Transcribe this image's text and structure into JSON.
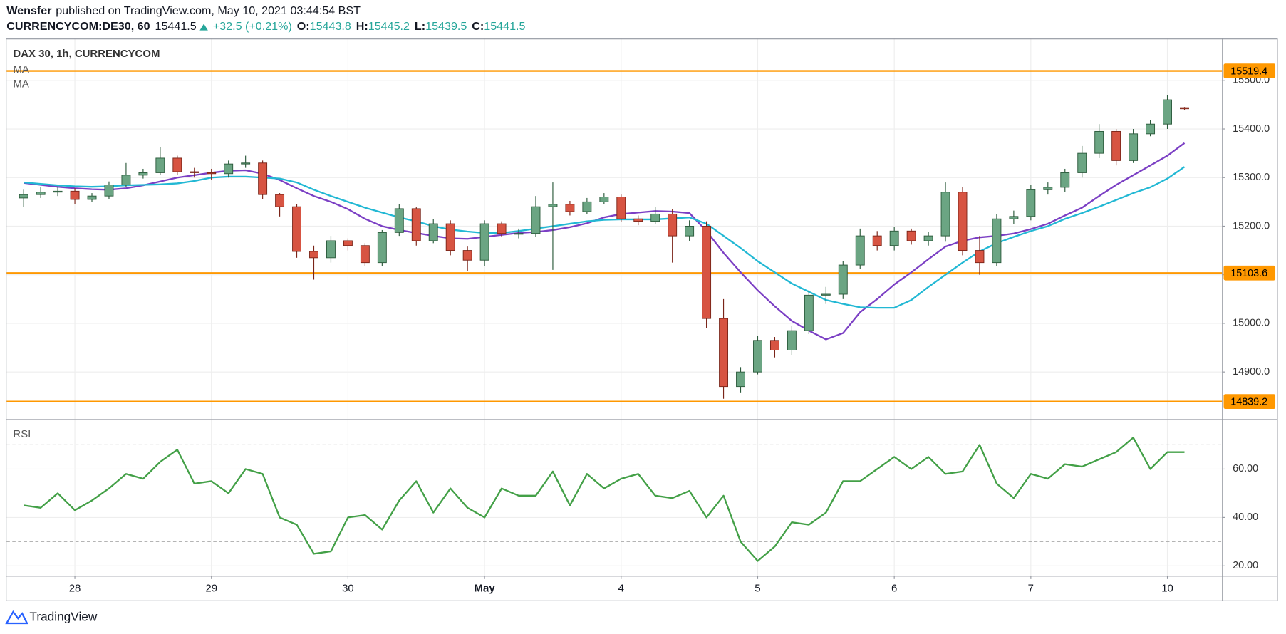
{
  "header": {
    "author": "Wensfer",
    "published": "published on TradingView.com, May 10, 2021 03:44:54 BST",
    "symbol": "CURRENCYCOM:DE30, 60",
    "last": "15441.5",
    "change": "+32.5 (+0.21%)",
    "ohlc": [
      {
        "label": "O:",
        "value": "15443.8"
      },
      {
        "label": "H:",
        "value": "15445.2"
      },
      {
        "label": "L:",
        "value": "15439.5"
      },
      {
        "label": "C:",
        "value": "15441.5"
      }
    ]
  },
  "footer": {
    "brand": "TradingView"
  },
  "chart_data": [
    {
      "type": "candlestick",
      "title": "DAX 30, 1h, CURRENCYCOM",
      "x": [
        1,
        2,
        3,
        4,
        5,
        6,
        7,
        8,
        9,
        10,
        11,
        12,
        13,
        14,
        15,
        16,
        17,
        18,
        19,
        20,
        21,
        22,
        23,
        24,
        25,
        26,
        27,
        28,
        29,
        30,
        31,
        32,
        33,
        34,
        35,
        36,
        37,
        38,
        39,
        40,
        41,
        42,
        43,
        44,
        45,
        46,
        47,
        48,
        49,
        50,
        51,
        52,
        53,
        54,
        55,
        56,
        57,
        58,
        59,
        60,
        61,
        62,
        63,
        64,
        65,
        66,
        67,
        68,
        69
      ],
      "open": [
        15258,
        15265,
        15270,
        15272,
        15255,
        15262,
        15285,
        15305,
        15310,
        15340,
        15312,
        15310,
        15308,
        15328,
        15330,
        15265,
        15240,
        15148,
        15135,
        15170,
        15160,
        15125,
        15187,
        15236,
        15170,
        15205,
        15150,
        15130,
        15205,
        15185,
        15185,
        15240,
        15245,
        15230,
        15250,
        15260,
        15215,
        15210,
        15225,
        15180,
        15200,
        15010,
        14870,
        14900,
        14965,
        14945,
        14985,
        15058,
        15060,
        15120,
        15180,
        15160,
        15190,
        15170,
        15180,
        15270,
        15150,
        15125,
        15215,
        15220,
        15275,
        15280,
        15310,
        15350,
        15395,
        15335,
        15390,
        15410,
        15443.8
      ],
      "high": [
        15275,
        15280,
        15280,
        15278,
        15268,
        15292,
        15330,
        15318,
        15362,
        15345,
        15320,
        15318,
        15335,
        15345,
        15335,
        15268,
        15245,
        15160,
        15180,
        15175,
        15165,
        15192,
        15245,
        15240,
        15215,
        15212,
        15158,
        15212,
        15210,
        15195,
        15262,
        15290,
        15252,
        15258,
        15268,
        15265,
        15222,
        15240,
        15235,
        15212,
        15210,
        15050,
        14910,
        14975,
        14972,
        14995,
        15068,
        15075,
        15128,
        15195,
        15190,
        15198,
        15195,
        15188,
        15290,
        15280,
        15180,
        15225,
        15232,
        15285,
        15290,
        15318,
        15365,
        15410,
        15400,
        15400,
        15418,
        15470,
        15445.2
      ],
      "low": [
        15240,
        15258,
        15262,
        15245,
        15250,
        15255,
        15280,
        15298,
        15305,
        15305,
        15300,
        15295,
        15300,
        15320,
        15255,
        15220,
        15135,
        15090,
        15125,
        15150,
        15118,
        15118,
        15180,
        15160,
        15165,
        15140,
        15108,
        15118,
        15178,
        15175,
        15178,
        15110,
        15222,
        15225,
        15245,
        15208,
        15202,
        15205,
        15125,
        15170,
        14990,
        14845,
        14858,
        14895,
        14930,
        14935,
        14978,
        15040,
        15050,
        15112,
        15150,
        15150,
        15162,
        15160,
        15168,
        15140,
        15100,
        15118,
        15205,
        15212,
        15265,
        15270,
        15300,
        15340,
        15325,
        15330,
        15385,
        15400,
        15439.5
      ],
      "close": [
        15265,
        15270,
        15272,
        15255,
        15262,
        15285,
        15305,
        15310,
        15340,
        15312,
        15310,
        15308,
        15328,
        15330,
        15265,
        15240,
        15148,
        15135,
        15170,
        15160,
        15125,
        15187,
        15236,
        15170,
        15205,
        15150,
        15130,
        15205,
        15185,
        15185,
        15240,
        15245,
        15230,
        15250,
        15260,
        15215,
        15210,
        15225,
        15180,
        15200,
        15010,
        14870,
        14900,
        14965,
        14945,
        14985,
        15058,
        15060,
        15120,
        15180,
        15160,
        15190,
        15170,
        15180,
        15270,
        15150,
        15125,
        15215,
        15220,
        15275,
        15280,
        15310,
        15350,
        15395,
        15335,
        15390,
        15410,
        15460,
        15441.5
      ],
      "up_color": "#6ba583",
      "down_color": "#d75442",
      "series": [
        {
          "name": "MA",
          "color": "#7b3fc4",
          "values": [
            15289,
            15285,
            15281,
            15278,
            15276,
            15275,
            15278,
            15284,
            15292,
            15300,
            15305,
            15310,
            15314,
            15315,
            15308,
            15295,
            15278,
            15262,
            15250,
            15235,
            15215,
            15200,
            15192,
            15186,
            15180,
            15175,
            15174,
            15178,
            15182,
            15186,
            15188,
            15192,
            15198,
            15206,
            15218,
            15225,
            15228,
            15231,
            15230,
            15227,
            15190,
            15145,
            15105,
            15068,
            15035,
            15005,
            14985,
            14967,
            14980,
            15023,
            15050,
            15080,
            15105,
            15132,
            15158,
            15170,
            15177,
            15180,
            15185,
            15194,
            15205,
            15222,
            15238,
            15262,
            15285,
            15305,
            15325,
            15345,
            15371
          ]
        },
        {
          "name": "MA",
          "color": "#22b8d4",
          "values": [
            15290,
            15287,
            15284,
            15282,
            15281,
            15282,
            15284,
            15285,
            15286,
            15288,
            15293,
            15300,
            15302,
            15302,
            15300,
            15298,
            15290,
            15275,
            15262,
            15250,
            15238,
            15228,
            15218,
            15210,
            15200,
            15193,
            15189,
            15186,
            15186,
            15190,
            15195,
            15200,
            15205,
            15210,
            15213,
            15214,
            15214,
            15214,
            15216,
            15218,
            15205,
            15180,
            15155,
            15128,
            15105,
            15082,
            15065,
            15048,
            15040,
            15033,
            15032,
            15032,
            15048,
            15075,
            15100,
            15125,
            15148,
            15165,
            15178,
            15190,
            15200,
            15215,
            15227,
            15240,
            15254,
            15268,
            15280,
            15298,
            15322
          ]
        }
      ],
      "levels": [
        15519.4,
        15103.6,
        14839.2
      ],
      "level_color": "#ff9800",
      "xlim": [
        0,
        71.2
      ],
      "xticks": [
        {
          "value": 4,
          "label": "28"
        },
        {
          "value": 12,
          "label": "29"
        },
        {
          "value": 20,
          "label": "30"
        },
        {
          "value": 28,
          "label": "May"
        },
        {
          "value": 36,
          "label": "4"
        },
        {
          "value": 44,
          "label": "5"
        },
        {
          "value": 52,
          "label": "6"
        },
        {
          "value": 60,
          "label": "7"
        },
        {
          "value": 68,
          "label": "10"
        }
      ],
      "ylim": [
        14803,
        15586
      ],
      "yticks": [
        {
          "value": 14900,
          "label": "14900.0"
        },
        {
          "value": 15000,
          "label": "15000.0"
        },
        {
          "value": 15100,
          "label": "15100.0"
        },
        {
          "value": 15200,
          "label": "15200.0"
        },
        {
          "value": 15300,
          "label": "15300.0"
        },
        {
          "value": 15400,
          "label": "15400.0"
        },
        {
          "value": 15500,
          "label": "15500.0"
        }
      ],
      "grid": true
    },
    {
      "type": "line",
      "series": [
        {
          "name": "RSI",
          "color": "#43a047",
          "values": [
            45,
            44,
            50,
            43,
            47,
            52,
            58,
            56,
            63,
            68,
            54,
            55,
            50,
            60,
            58,
            40,
            37,
            25,
            26,
            40,
            41,
            35,
            47,
            55,
            42,
            52,
            44,
            40,
            52,
            49,
            49,
            59,
            45,
            58,
            52,
            56,
            58,
            49,
            48,
            51,
            40,
            49,
            30,
            22,
            28,
            38,
            37,
            42,
            55,
            55,
            60,
            65,
            60,
            65,
            58,
            59,
            70,
            54,
            48,
            58,
            56,
            62,
            61,
            64,
            67,
            73,
            60,
            67,
            67
          ]
        }
      ],
      "bands": [
        70,
        30
      ],
      "ylim": [
        15.9,
        80.3
      ],
      "yticks": [
        {
          "value": 20,
          "label": "20.00"
        },
        {
          "value": 40,
          "label": "40.00"
        },
        {
          "value": 60,
          "label": "60.00"
        }
      ],
      "grid": true
    }
  ]
}
